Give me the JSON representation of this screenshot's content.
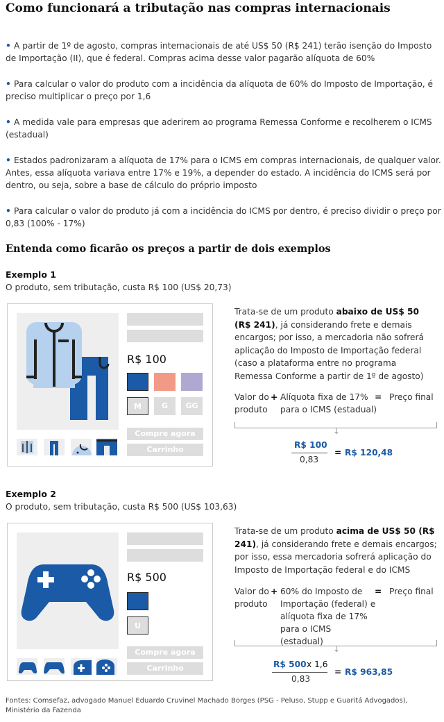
{
  "title": "Como funcionará a tributação nas compras internacionais",
  "colors": {
    "accent": "#1a5aa6",
    "light_blue": "#b6d1ee",
    "salmon": "#f29a86",
    "lavender": "#b0a8d0",
    "placeholder": "#dddddd"
  },
  "bullets": [
    "A partir de 1º de agosto, compras internacionais de até US$ 50 (R$ 241) terão isenção do Imposto de Importação (II), que é federal. Compras acima desse valor pagarão alíquota de 60%",
    "Para calcular o valor do produto com a incidência da alíquota de 60% do Imposto de Importação, é preciso multiplicar o preço por 1,6",
    "A medida vale para empresas que aderirem ao programa Remessa Conforme e recolherem o ICMS (estadual)",
    "Estados padronizaram a alíquota de 17% para o ICMS em compras internacionais, de qualquer valor. Antes, essa alíquota variava entre 17% e 19%, a depender do estado. A incidência do ICMS será por dentro, ou seja, sobre a base de cálculo do próprio imposto",
    "Para calcular o valor do produto já com a incidência do ICMS por dentro, é preciso dividir o preço por 0,83 (100% - 17%)"
  ],
  "section_heading": "Entenda como ficarão os preços a partir de dois exemplos",
  "examples": [
    {
      "label": "Exemplo 1",
      "subtitle": "O produto, sem tributação, custa R$ 100 (US$ 20,73)",
      "card": {
        "icon": "clothes-icon",
        "price": "R$ 100",
        "sizes": [
          "M",
          "G",
          "GG"
        ],
        "buy": "Compre agora",
        "cart": "Carrinho"
      },
      "desc_pre": "Trata-se de um produto ",
      "desc_bold": "abaixo de US$ 50 (R$ 241)",
      "desc_post": ", já considerando frete e demais encargos; por isso, a mercadoria não sofrerá aplicação do Imposto de Importação federal (caso a plataforma entre no programa Remessa Conforme a partir de 1º de agosto)",
      "formula": {
        "a": "Valor do produto",
        "plus": "+",
        "b": "Alíquota fixa de 17% para o ICMS (estadual)",
        "eq": "=",
        "c": "Preço final"
      },
      "calc": {
        "numerator": "R$ 100",
        "multiplier": "",
        "denominator": "0,83",
        "eq": "=",
        "result": "R$ 120,48"
      }
    },
    {
      "label": "Exemplo 2",
      "subtitle": "O produto, sem tributação, custa R$ 500 (US$ 103,63)",
      "card": {
        "icon": "gamepad-icon",
        "price": "R$ 500",
        "sizes": [
          "U"
        ],
        "buy": "Compre agora",
        "cart": "Carrinho"
      },
      "desc_pre": "Trata-se de um produto ",
      "desc_bold": "acima de US$ 50 (R$ 241)",
      "desc_post": ", já considerando frete e demais encargos; por isso, essa mercadoria sofrerá aplicação do Imposto de Importação federal e do ICMS",
      "formula": {
        "a": "Valor do produto",
        "plus": "+",
        "b": "60% do Imposto de Importação (federal) e alíquota fixa de 17% para o ICMS (estadual)",
        "eq": "=",
        "c": "Preço final"
      },
      "calc": {
        "numerator": "R$ 500",
        "multiplier": "x 1,6",
        "denominator": "0,83",
        "eq": "=",
        "result": "R$ 963,85"
      }
    }
  ],
  "sources": "Fontes: Comsefaz, advogado Manuel Eduardo Cruvinel Machado Borges (PSG - Peluso, Stupp e Guaritá Advogados), Ministério da Fazenda"
}
